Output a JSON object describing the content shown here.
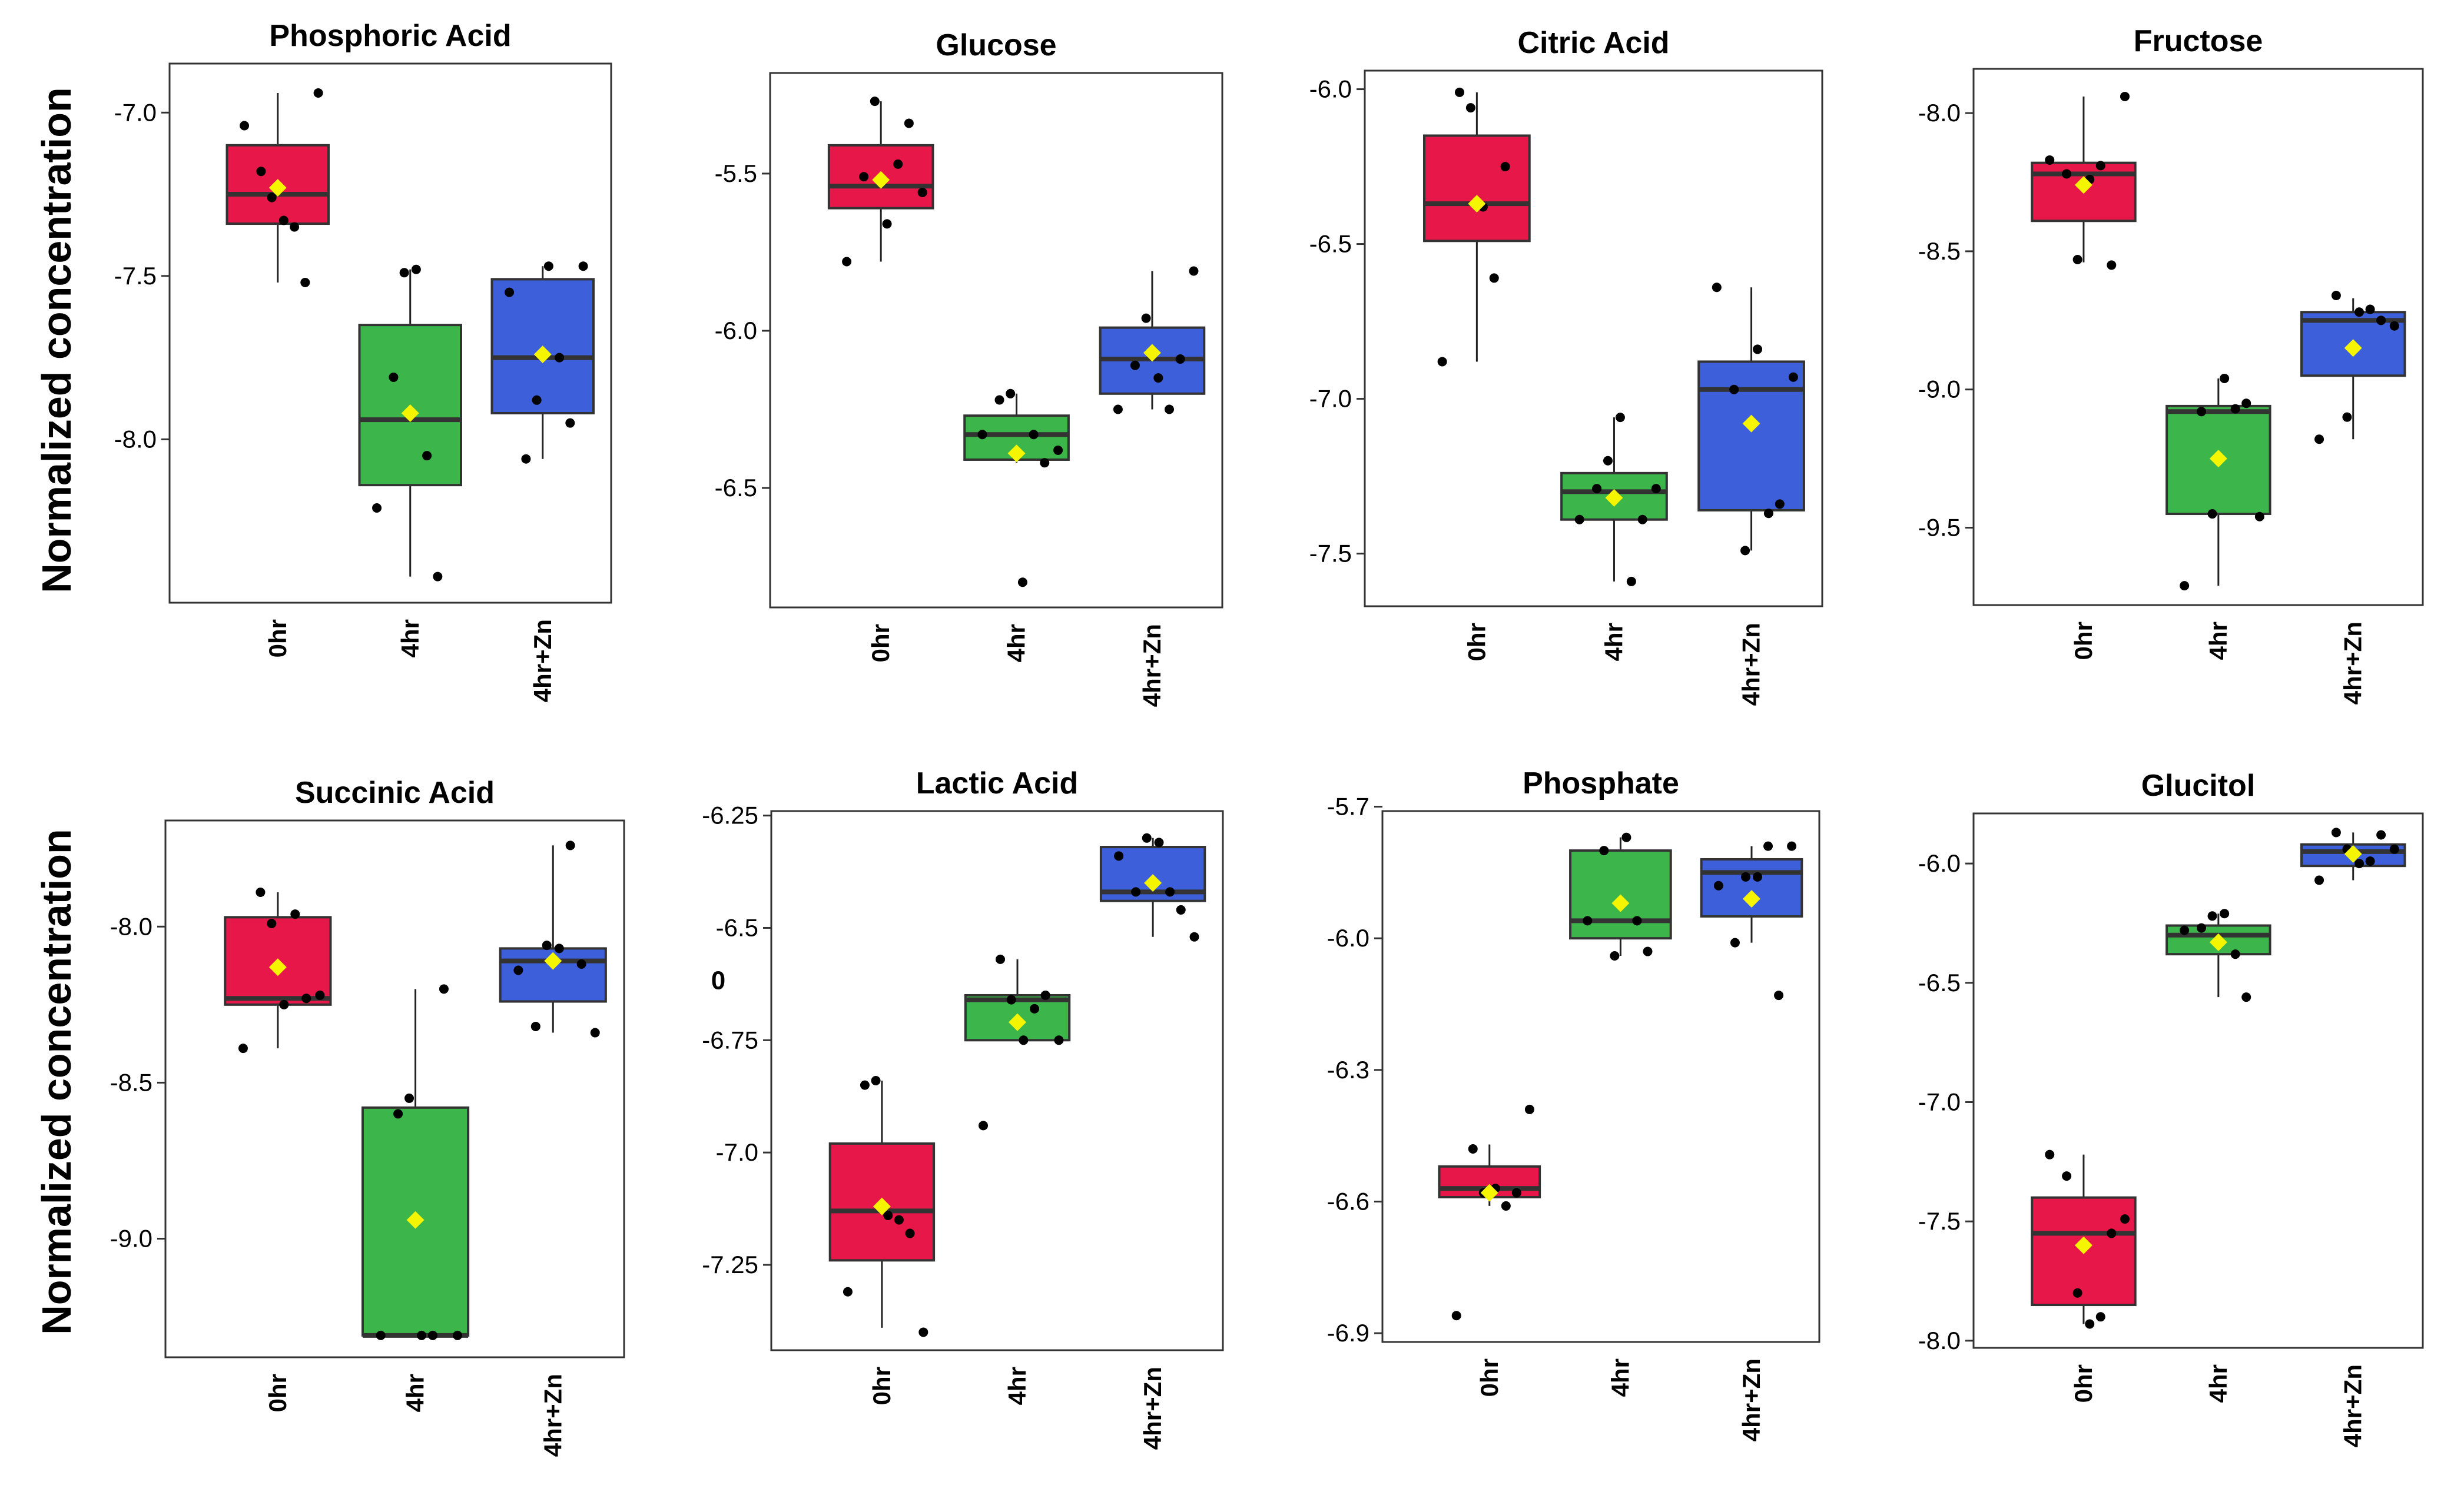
{
  "ylabel": "Normalized concentration",
  "colors": {
    "0hr": "#e8174a",
    "4hr": "#3cb54a",
    "4hr+Zn": "#3d5fd9",
    "mean": "#f5f500",
    "point": "#000000",
    "median": "#333333"
  },
  "chart_data": [
    {
      "type": "box",
      "title": "Phosphoric Acid",
      "categories": [
        "0hr",
        "4hr",
        "4hr+Zn"
      ],
      "yticks": [
        "-7.0",
        "-7.5",
        "-8.0"
      ],
      "ytick_values": [
        -7.0,
        -7.5,
        -8.0
      ],
      "ylim": [
        -8.5,
        -6.85
      ],
      "boxes": [
        {
          "low": -7.52,
          "q1": -7.34,
          "median": -7.25,
          "q3": -7.1,
          "high": -6.94,
          "mean": -7.23,
          "points": [
            -7.04,
            -7.18,
            -7.26,
            -7.33,
            -7.35,
            -7.52,
            -6.94
          ]
        },
        {
          "low": -8.42,
          "q1": -8.14,
          "median": -7.94,
          "q3": -7.65,
          "high": -7.48,
          "mean": -7.92,
          "points": [
            -8.21,
            -7.81,
            -7.49,
            -7.48,
            -8.05,
            -8.42
          ]
        },
        {
          "low": -8.06,
          "q1": -7.92,
          "median": -7.75,
          "q3": -7.51,
          "high": -7.47,
          "mean": -7.74,
          "points": [
            -7.55,
            -8.06,
            -7.88,
            -7.47,
            -7.75,
            -7.95,
            -7.47
          ]
        }
      ]
    },
    {
      "type": "box",
      "title": "Glucose",
      "categories": [
        "0hr",
        "4hr",
        "4hr+Zn"
      ],
      "yticks": [
        "-5.5",
        "-6.0",
        "-6.5"
      ],
      "ytick_values": [
        -5.5,
        -6.0,
        -6.5
      ],
      "ylim": [
        -6.88,
        -5.18
      ],
      "boxes": [
        {
          "low": -5.78,
          "q1": -5.61,
          "median": -5.54,
          "q3": -5.41,
          "high": -5.27,
          "mean": -5.52,
          "points": [
            -5.78,
            -5.51,
            -5.27,
            -5.66,
            -5.47,
            -5.34,
            -5.56
          ]
        },
        {
          "low": -6.42,
          "q1": -6.41,
          "median": -6.33,
          "q3": -6.27,
          "high": -6.2,
          "mean": -6.39,
          "points": [
            -6.33,
            -6.22,
            -6.2,
            -6.8,
            -6.33,
            -6.42,
            -6.38
          ]
        },
        {
          "low": -6.25,
          "q1": -6.2,
          "median": -6.09,
          "q3": -5.99,
          "high": -5.81,
          "mean": -6.07,
          "points": [
            -6.25,
            -6.11,
            -5.96,
            -6.15,
            -6.25,
            -6.09,
            -5.81
          ]
        }
      ]
    },
    {
      "type": "box",
      "title": "Citric Acid",
      "categories": [
        "0hr",
        "4hr",
        "4hr+Zn"
      ],
      "yticks": [
        "-6.0",
        "-6.5",
        "-7.0",
        "-7.5"
      ],
      "ytick_values": [
        -6.0,
        -6.5,
        -7.0,
        -7.5
      ],
      "ylim": [
        -7.67,
        -5.94
      ],
      "boxes": [
        {
          "low": -6.88,
          "q1": -6.49,
          "median": -6.37,
          "q3": -6.15,
          "high": -6.01,
          "mean": -6.37,
          "points": [
            -6.88,
            -6.01,
            -6.06,
            -6.38,
            -6.61,
            -6.25
          ]
        },
        {
          "low": -7.59,
          "q1": -7.39,
          "median": -7.3,
          "q3": -7.24,
          "high": -7.06,
          "mean": -7.32,
          "points": [
            -7.39,
            -7.29,
            -7.2,
            -7.06,
            -7.59,
            -7.39,
            -7.29
          ]
        },
        {
          "low": -7.49,
          "q1": -7.36,
          "median": -6.97,
          "q3": -6.88,
          "high": -6.64,
          "mean": -7.08,
          "points": [
            -6.64,
            -6.97,
            -7.49,
            -6.84,
            -7.37,
            -7.34,
            -6.93
          ]
        }
      ]
    },
    {
      "type": "box",
      "title": "Fructose",
      "categories": [
        "0hr",
        "4hr",
        "4hr+Zn"
      ],
      "yticks": [
        "-8.0",
        "-8.5",
        "-9.0",
        "-9.5"
      ],
      "ytick_values": [
        -8.0,
        -8.5,
        -9.0,
        -9.5
      ],
      "ylim": [
        -9.78,
        -7.84
      ],
      "boxes": [
        {
          "low": -8.54,
          "q1": -8.39,
          "median": -8.22,
          "q3": -8.18,
          "high": -7.94,
          "mean": -8.26,
          "points": [
            -8.17,
            -8.22,
            -8.53,
            -8.24,
            -8.19,
            -8.55,
            -7.94
          ]
        },
        {
          "low": -9.71,
          "q1": -9.45,
          "median": -9.08,
          "q3": -9.06,
          "high": -8.96,
          "mean": -9.25,
          "points": [
            -9.71,
            -9.08,
            -9.45,
            -8.96,
            -9.07,
            -9.05,
            -9.46
          ]
        },
        {
          "low": -9.18,
          "q1": -8.95,
          "median": -8.75,
          "q3": -8.72,
          "high": -8.67,
          "mean": -8.85,
          "points": [
            -9.18,
            -8.66,
            -9.1,
            -8.72,
            -8.71,
            -8.75,
            -8.77
          ]
        }
      ]
    },
    {
      "type": "box",
      "title": "Succinic Acid",
      "categories": [
        "0hr",
        "4hr",
        "4hr+Zn"
      ],
      "yticks": [
        "-8.0",
        "-8.5",
        "-9.0"
      ],
      "ytick_values": [
        -8.0,
        -8.5,
        -9.0
      ],
      "ylim": [
        -9.38,
        -7.66
      ],
      "boxes": [
        {
          "low": -8.39,
          "q1": -8.25,
          "median": -8.23,
          "q3": -7.97,
          "high": -7.89,
          "mean": -8.13,
          "points": [
            -8.39,
            -7.89,
            -7.99,
            -8.25,
            -7.96,
            -8.23,
            -8.22
          ]
        },
        {
          "low": -9.31,
          "q1": -9.31,
          "median": -9.31,
          "q3": -8.58,
          "high": -8.2,
          "mean": -8.94,
          "points": [
            -9.31,
            -8.6,
            -8.55,
            -9.31,
            -9.31,
            -8.2,
            -9.31
          ]
        },
        {
          "low": -8.34,
          "q1": -8.24,
          "median": -8.11,
          "q3": -8.07,
          "high": -7.74,
          "mean": -8.11,
          "points": [
            -8.14,
            -8.32,
            -8.06,
            -8.07,
            -7.74,
            -8.12,
            -8.34
          ]
        }
      ]
    },
    {
      "type": "box",
      "title": "Lactic Acid",
      "categories": [
        "0hr",
        "4hr",
        "4hr+Zn"
      ],
      "yticks": [
        "-6.25",
        "-6.5",
        "-6.75",
        "-7.0",
        "-7.25"
      ],
      "ytick_values": [
        -6.25,
        -6.5,
        -6.75,
        -7.0,
        -7.25
      ],
      "ylim": [
        -7.44,
        -6.24
      ],
      "annotation": "0",
      "boxes": [
        {
          "low": -7.39,
          "q1": -7.24,
          "median": -7.13,
          "q3": -6.98,
          "high": -6.84,
          "mean": -7.12,
          "points": [
            -7.31,
            -6.85,
            -6.84,
            -7.14,
            -7.15,
            -7.18,
            -7.4
          ]
        },
        {
          "low": -6.75,
          "q1": -6.75,
          "median": -6.66,
          "q3": -6.65,
          "high": -6.57,
          "mean": -6.71,
          "points": [
            -6.94,
            -6.57,
            -6.66,
            -6.75,
            -6.68,
            -6.65,
            -6.75
          ]
        },
        {
          "low": -6.52,
          "q1": -6.44,
          "median": -6.42,
          "q3": -6.32,
          "high": -6.3,
          "mean": -6.4,
          "points": [
            -6.34,
            -6.42,
            -6.3,
            -6.31,
            -6.42,
            -6.46,
            -6.52
          ]
        }
      ]
    },
    {
      "type": "box",
      "title": "Phosphate",
      "categories": [
        "0hr",
        "4hr",
        "4hr+Zn"
      ],
      "yticks": [
        "-5.7",
        "-6.0",
        "-6.3",
        "-6.6",
        "-6.9"
      ],
      "ytick_values": [
        -5.7,
        -6.0,
        -6.3,
        -6.6,
        -6.9
      ],
      "ylim": [
        -6.92,
        -5.71
      ],
      "boxes": [
        {
          "low": -6.61,
          "q1": -6.59,
          "median": -6.57,
          "q3": -6.52,
          "high": -6.47,
          "mean": -6.58,
          "points": [
            -6.86,
            -6.48,
            -6.58,
            -6.57,
            -6.61,
            -6.58,
            -6.39
          ]
        },
        {
          "low": -6.04,
          "q1": -6.0,
          "median": -5.96,
          "q3": -5.8,
          "high": -5.77,
          "mean": -5.92,
          "points": [
            -5.96,
            -5.8,
            -6.04,
            -5.77,
            -5.96,
            -6.03
          ]
        },
        {
          "low": -6.01,
          "q1": -5.95,
          "median": -5.85,
          "q3": -5.82,
          "high": -5.79,
          "mean": -5.91,
          "points": [
            -5.88,
            -6.01,
            -5.86,
            -5.86,
            -5.79,
            -6.13,
            -5.79
          ]
        }
      ]
    },
    {
      "type": "box",
      "title": "Glucitol",
      "categories": [
        "0hr",
        "4hr",
        "4hr+Zn"
      ],
      "yticks": [
        "-6.0",
        "-6.5",
        "-7.0",
        "-7.5",
        "-8.0"
      ],
      "ytick_values": [
        -6.0,
        -6.5,
        -7.0,
        -7.5,
        -8.0
      ],
      "ylim": [
        -8.03,
        -5.79
      ],
      "boxes": [
        {
          "low": -7.93,
          "q1": -7.85,
          "median": -7.55,
          "q3": -7.4,
          "high": -7.22,
          "mean": -7.6,
          "points": [
            -7.22,
            -7.31,
            -7.8,
            -7.93,
            -7.9,
            -7.55,
            -7.49
          ]
        },
        {
          "low": -6.56,
          "q1": -6.38,
          "median": -6.3,
          "q3": -6.26,
          "high": -6.21,
          "mean": -6.33,
          "points": [
            -6.28,
            -6.27,
            -6.22,
            -6.21,
            -6.38,
            -6.56
          ]
        },
        {
          "low": -6.07,
          "q1": -6.01,
          "median": -5.95,
          "q3": -5.92,
          "high": -5.87,
          "mean": -5.96,
          "points": [
            -6.07,
            -5.87,
            -5.94,
            -6.0,
            -5.99,
            -5.88,
            -5.94
          ]
        }
      ]
    }
  ]
}
